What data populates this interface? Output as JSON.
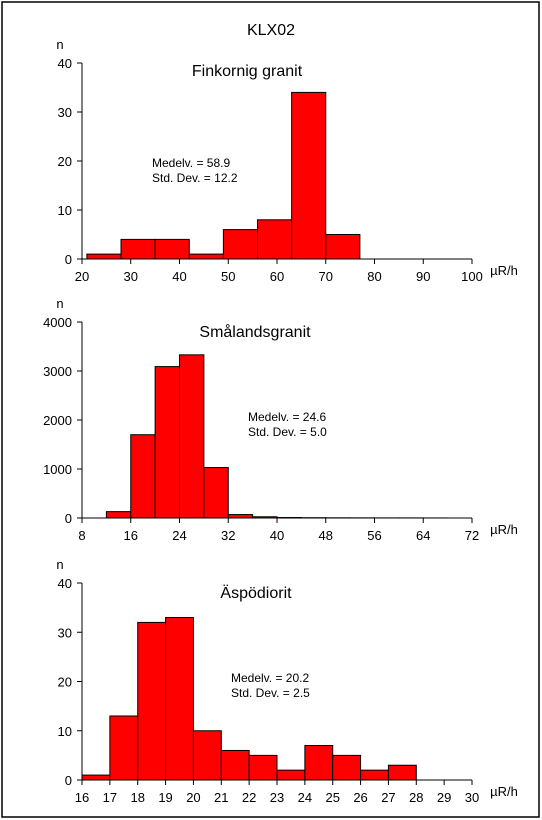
{
  "title": "KLX02",
  "colors": {
    "bar_fill": "#ff0000",
    "bar_stroke": "#000000",
    "frame": "#000000"
  },
  "chart_data": [
    {
      "type": "bar",
      "title": "Finkornig granit",
      "ylabel": "n",
      "xlabel": "µR/h",
      "xlim": [
        20,
        100
      ],
      "ylim": [
        0,
        40
      ],
      "xticks": [
        20,
        30,
        40,
        50,
        60,
        70,
        80,
        90,
        100
      ],
      "yticks": [
        0,
        10,
        20,
        30,
        40
      ],
      "bin_width": 7,
      "bin_starts": [
        21,
        28,
        35,
        42,
        49,
        56,
        63,
        70
      ],
      "values": [
        1,
        4,
        4,
        1,
        6,
        8,
        34,
        5
      ],
      "stats": {
        "mean_label": "Medelv. = 58.9",
        "std_label": "Std. Dev. = 12.2"
      }
    },
    {
      "type": "bar",
      "title": "Smålandsgranit",
      "ylabel": "n",
      "xlabel": "µR/h",
      "xlim": [
        8,
        72
      ],
      "ylim": [
        0,
        4000
      ],
      "xticks": [
        8,
        16,
        24,
        32,
        40,
        48,
        56,
        64,
        72
      ],
      "yticks": [
        0,
        1000,
        2000,
        3000,
        4000
      ],
      "bin_width": 4,
      "bin_starts": [
        12,
        16,
        20,
        24,
        28,
        32,
        36,
        40,
        44,
        48,
        52,
        56,
        60,
        64
      ],
      "values": [
        130,
        1700,
        3090,
        3330,
        1030,
        70,
        25,
        10,
        6,
        4,
        3,
        2,
        2,
        1
      ],
      "stats": {
        "mean_label": "Medelv. = 24.6",
        "std_label": "Std. Dev. = 5.0"
      }
    },
    {
      "type": "bar",
      "title": "Äspödiorit",
      "ylabel": "n",
      "xlabel": "µR/h",
      "xlim": [
        16,
        30
      ],
      "ylim": [
        0,
        40
      ],
      "xticks": [
        16,
        17,
        18,
        19,
        20,
        21,
        22,
        23,
        24,
        25,
        26,
        27,
        28,
        29,
        30
      ],
      "yticks": [
        0,
        10,
        20,
        30,
        40
      ],
      "bin_width": 1,
      "bin_starts": [
        16,
        17,
        18,
        19,
        20,
        21,
        22,
        23,
        24,
        25,
        26,
        27
      ],
      "values": [
        1,
        13,
        32,
        33,
        10,
        6,
        5,
        2,
        7,
        5,
        2,
        3
      ],
      "stats": {
        "mean_label": "Medelv. = 20.2",
        "std_label": "Std. Dev. = 2.5"
      }
    }
  ]
}
